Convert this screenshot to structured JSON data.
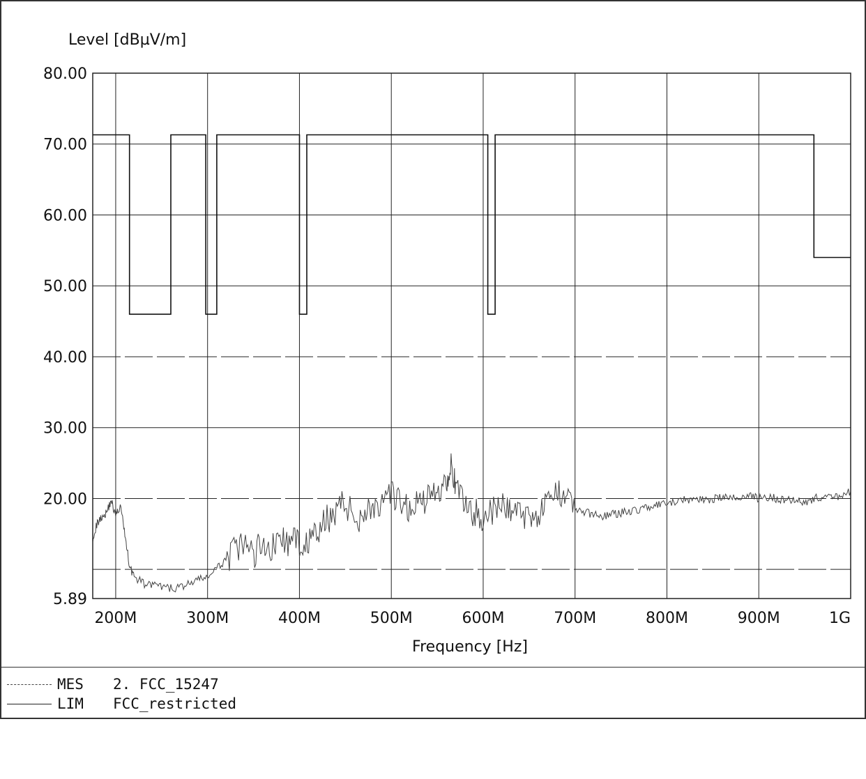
{
  "chart_data": {
    "type": "line",
    "ylabel": "Level [dBµV/m]",
    "xlabel": "Frequency [Hz]",
    "xlim": [
      175000000,
      1000000000
    ],
    "ylim": [
      5.89,
      80
    ],
    "y_ticks": [
      {
        "value": 80,
        "label": "80.00"
      },
      {
        "value": 70,
        "label": "70.00"
      },
      {
        "value": 60,
        "label": "60.00"
      },
      {
        "value": 50,
        "label": "50.00"
      },
      {
        "value": 40,
        "label": "40.00"
      },
      {
        "value": 30,
        "label": "30.00"
      },
      {
        "value": 20,
        "label": "20.00"
      },
      {
        "value": 5.89,
        "label": "5.89"
      }
    ],
    "x_ticks": [
      {
        "value": 200000000,
        "label": "200M"
      },
      {
        "value": 300000000,
        "label": "300M"
      },
      {
        "value": 400000000,
        "label": "400M"
      },
      {
        "value": 500000000,
        "label": "500M"
      },
      {
        "value": 600000000,
        "label": "600M"
      },
      {
        "value": 700000000,
        "label": "700M"
      },
      {
        "value": 800000000,
        "label": "800M"
      },
      {
        "value": 900000000,
        "label": "900M"
      },
      {
        "value": 1000000000,
        "label": "1G"
      }
    ],
    "grid": true,
    "series": [
      {
        "name": "FCC_restricted",
        "color": "#111111",
        "style": "solid-step",
        "x": [
          175000000,
          215000000,
          215000000,
          260000000,
          260000000,
          298000000,
          298000000,
          310000000,
          310000000,
          400000000,
          400000000,
          408000000,
          408000000,
          605000000,
          605000000,
          613000000,
          613000000,
          960000000,
          960000000,
          1000000000
        ],
        "y": [
          71.3,
          71.3,
          46,
          46,
          71.3,
          71.3,
          46,
          46,
          71.3,
          71.3,
          46,
          46,
          71.3,
          71.3,
          46,
          46,
          71.3,
          71.3,
          54,
          54
        ]
      },
      {
        "name": "2. FCC_15247",
        "color": "#444444",
        "style": "noisy-trace",
        "x": [
          175000000,
          180000000,
          185000000,
          190000000,
          195000000,
          200000000,
          205000000,
          210000000,
          215000000,
          220000000,
          230000000,
          240000000,
          250000000,
          260000000,
          270000000,
          280000000,
          290000000,
          300000000,
          310000000,
          320000000,
          330000000,
          340000000,
          350000000,
          360000000,
          370000000,
          380000000,
          390000000,
          400000000,
          410000000,
          420000000,
          430000000,
          440000000,
          450000000,
          460000000,
          470000000,
          480000000,
          490000000,
          500000000,
          510000000,
          520000000,
          530000000,
          540000000,
          550000000,
          560000000,
          565000000,
          570000000,
          580000000,
          590000000,
          600000000,
          610000000,
          620000000,
          630000000,
          640000000,
          650000000,
          660000000,
          670000000,
          680000000,
          690000000,
          700000000,
          710000000,
          720000000,
          730000000,
          740000000,
          750000000,
          760000000,
          770000000,
          780000000,
          790000000,
          800000000,
          810000000,
          820000000,
          830000000,
          840000000,
          850000000,
          860000000,
          870000000,
          880000000,
          890000000,
          900000000,
          910000000,
          920000000,
          930000000,
          940000000,
          950000000,
          960000000,
          970000000,
          980000000,
          990000000,
          1000000000
        ],
        "y": [
          14.5,
          16.5,
          17.5,
          18.0,
          19.8,
          17.5,
          19.0,
          15.0,
          10.5,
          9.0,
          8.0,
          7.8,
          7.5,
          7.3,
          7.5,
          8.0,
          8.5,
          9.0,
          10.0,
          11.5,
          12.5,
          13.5,
          12.0,
          14.0,
          13.0,
          14.5,
          13.5,
          14.0,
          13.8,
          15.0,
          17.0,
          18.5,
          19.5,
          17.0,
          18.0,
          19.0,
          18.5,
          20.5,
          19.0,
          18.5,
          19.5,
          20.0,
          21.0,
          22.5,
          25.5,
          21.0,
          19.5,
          18.0,
          17.5,
          18.0,
          19.0,
          18.5,
          18.0,
          17.5,
          18.0,
          19.0,
          20.5,
          21.5,
          18.5,
          18.0,
          17.8,
          17.5,
          17.8,
          18.0,
          18.2,
          18.5,
          18.8,
          19.0,
          19.2,
          19.5,
          19.8,
          20.0,
          19.8,
          20.0,
          20.2,
          20.0,
          20.2,
          20.5,
          20.0,
          20.2,
          20.0,
          19.8,
          20.0,
          19.5,
          20.0,
          20.2,
          20.0,
          20.5,
          21.0
        ]
      }
    ],
    "legend": [
      {
        "code": "MES",
        "label": "2. FCC_15247"
      },
      {
        "code": "LIM",
        "label": "FCC_restricted"
      }
    ]
  }
}
